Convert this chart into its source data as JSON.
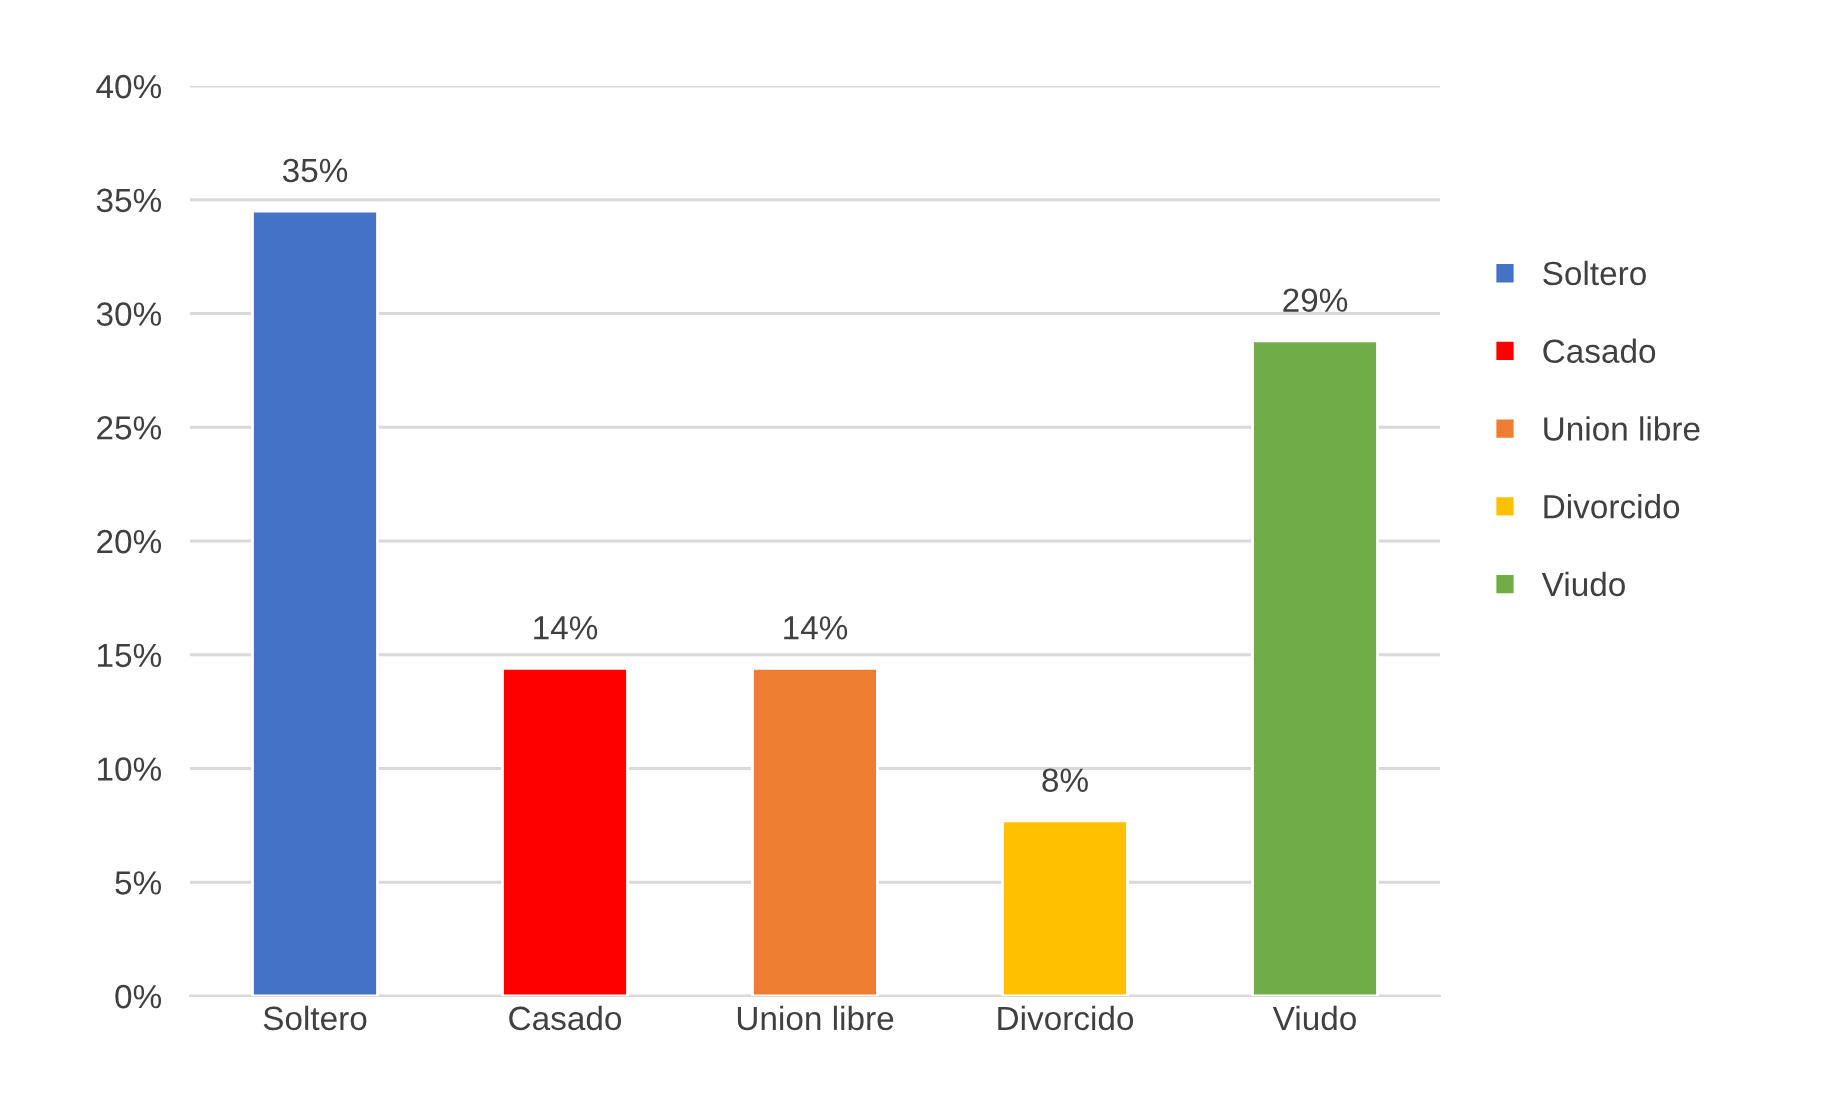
{
  "chart_data": {
    "type": "bar",
    "categories": [
      "Soltero",
      "Casado",
      "Union libre",
      "Divorcido",
      "Viudo"
    ],
    "stacked": true,
    "series": [
      {
        "name": "Soltero",
        "color": "#4472c4",
        "values": [
          34.5,
          null,
          null,
          null,
          null
        ],
        "value_labels": [
          "35%",
          null,
          null,
          null,
          null
        ]
      },
      {
        "name": "Casado",
        "color": "#ff0000",
        "values": [
          null,
          14.4,
          null,
          null,
          null
        ],
        "value_labels": [
          null,
          "14%",
          null,
          null,
          null
        ]
      },
      {
        "name": "Union libre",
        "color": "#ed7d31",
        "values": [
          null,
          null,
          14.4,
          null,
          null
        ],
        "value_labels": [
          null,
          null,
          "14%",
          null,
          null
        ]
      },
      {
        "name": "Divorcido",
        "color": "#ffc000",
        "values": [
          null,
          null,
          null,
          7.7,
          null
        ],
        "value_labels": [
          null,
          null,
          null,
          "8%",
          null
        ]
      },
      {
        "name": "Viudo",
        "color": "#70ad47",
        "values": [
          null,
          null,
          null,
          null,
          28.8
        ],
        "value_labels": [
          null,
          null,
          null,
          null,
          "29%"
        ]
      }
    ],
    "ylim": [
      0,
      40
    ],
    "yticks": [
      {
        "value": 0,
        "label": "0%"
      },
      {
        "value": 5,
        "label": "5%"
      },
      {
        "value": 10,
        "label": "10%"
      },
      {
        "value": 15,
        "label": "15%"
      },
      {
        "value": 20,
        "label": "20%"
      },
      {
        "value": 25,
        "label": "25%"
      },
      {
        "value": 30,
        "label": "30%"
      },
      {
        "value": 35,
        "label": "35%"
      },
      {
        "value": 40,
        "label": "40%"
      }
    ],
    "grid": "y",
    "legend": "right"
  }
}
